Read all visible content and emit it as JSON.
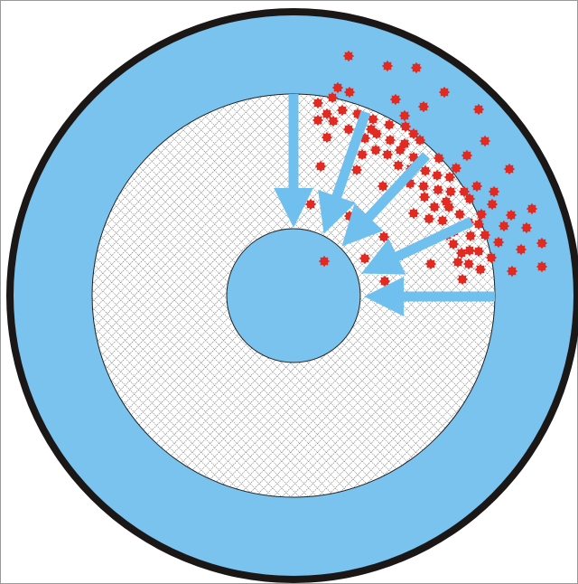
{
  "colors": {
    "background": "#ffffff",
    "outer_ring": "#1c1717",
    "fill": "#7ac3ee",
    "arrow": "#6fc0ee",
    "particle": "#e02a22",
    "hatch": "#555555",
    "frame": "#9a9a9a"
  },
  "diagram": {
    "rings": [
      "outer-rim",
      "outer-band",
      "hatched-annulus",
      "inner-core"
    ],
    "arrow_count": 5,
    "particle_count": 96
  }
}
